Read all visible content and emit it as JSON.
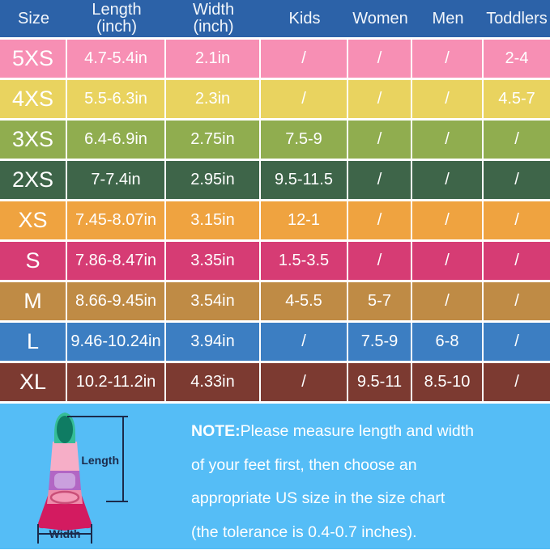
{
  "colors": {
    "header_bg": "#2c62a8",
    "grid_line": "#ffffff",
    "table_text": "#ffffff",
    "footer_bg": "#55bdf6",
    "note_text": "#ffffff",
    "dimension_line": "#1b2a4a"
  },
  "chart_data": {
    "type": "table",
    "columns": [
      {
        "label": "Size",
        "sub": ""
      },
      {
        "label": "Length",
        "sub": "(inch)"
      },
      {
        "label": "Width",
        "sub": "(inch)"
      },
      {
        "label": "Kids",
        "sub": ""
      },
      {
        "label": "Women",
        "sub": ""
      },
      {
        "label": "Men",
        "sub": ""
      },
      {
        "label": "Toddlers",
        "sub": ""
      }
    ],
    "rows": [
      {
        "size": "5XS",
        "color": "#f78fb4",
        "cells": [
          "4.7-5.4in",
          "2.1in",
          "/",
          "/",
          "/",
          "2-4"
        ]
      },
      {
        "size": "4XS",
        "color": "#e9d35f",
        "cells": [
          "5.5-6.3in",
          "2.3in",
          "/",
          "/",
          "/",
          "4.5-7"
        ]
      },
      {
        "size": "3XS",
        "color": "#90ad4f",
        "cells": [
          "6.4-6.9in",
          "2.75in",
          "7.5-9",
          "/",
          "/",
          "/"
        ]
      },
      {
        "size": "2XS",
        "color": "#3e6549",
        "cells": [
          "7-7.4in",
          "2.95in",
          "9.5-11.5",
          "/",
          "/",
          "/"
        ]
      },
      {
        "size": "XS",
        "color": "#efa340",
        "cells": [
          "7.45-8.07in",
          "3.15in",
          "12-1",
          "/",
          "/",
          "/"
        ]
      },
      {
        "size": "S",
        "color": "#d63c74",
        "cells": [
          "7.86-8.47in",
          "3.35in",
          "1.5-3.5",
          "/",
          "/",
          "/"
        ]
      },
      {
        "size": "M",
        "color": "#bf8b45",
        "cells": [
          "8.66-9.45in",
          "3.54in",
          "4-5.5",
          "5-7",
          "/",
          "/"
        ]
      },
      {
        "size": "L",
        "color": "#3c7ec2",
        "cells": [
          "9.46-10.24in",
          "3.94in",
          "/",
          "7.5-9",
          "6-8",
          "/"
        ]
      },
      {
        "size": "XL",
        "color": "#7c3a31",
        "cells": [
          "10.2-11.2in",
          "4.33in",
          "/",
          "9.5-11",
          "8.5-10",
          "/"
        ]
      }
    ]
  },
  "footer": {
    "note_bold": "NOTE:",
    "note_lines": [
      "Please measure length and width",
      "of your feet first, then choose an",
      "appropriate US size in the size chart",
      "(the tolerance is 0.4-0.7 inches)."
    ],
    "fin": {
      "length_label": "Length",
      "width_label": "Width",
      "colors": {
        "tip": "#35bd96",
        "toe_opening": "#0f7c63",
        "band_pink": "#f6aec7",
        "band_purple": "#b266c4",
        "band_purple_light": "#caa0de",
        "band_pink2": "#ee8cab",
        "heel": "#f49ab8",
        "heel_rim": "#c94f78",
        "blade": "#d31b60",
        "dimension": "#1b2a4a"
      }
    }
  }
}
